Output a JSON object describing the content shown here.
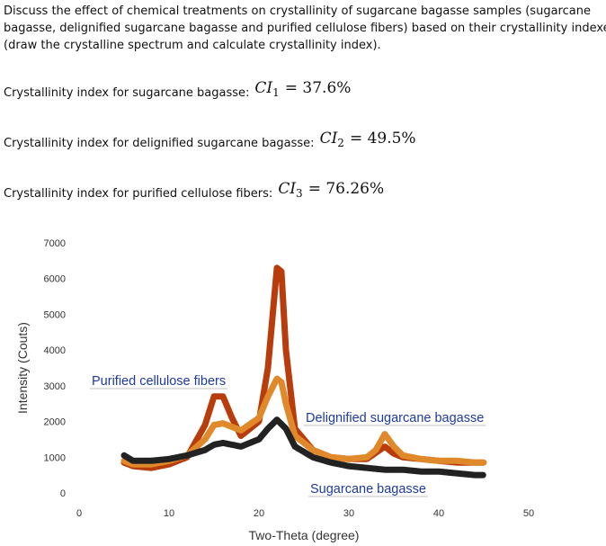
{
  "question": {
    "lines": [
      "Discuss the effect of chemical treatments on crystallinity of sugarcane bagasse samples (sugarcane",
      "bagasse, delignified sugarcane bagasse and purified cellulose fibers) based on their crystallinity indexes",
      "(draw the crystalline spectrum and calculate crystallinity index)."
    ]
  },
  "answers": [
    {
      "label": "Crystallinity index for sugarcane bagasse:",
      "symbol": "CI",
      "subscript": "1",
      "value": "= 37.6%"
    },
    {
      "label": "Crystallinity index for delignified sugarcane bagasse:",
      "symbol": "CI",
      "subscript": "2",
      "value": "= 49.5%"
    },
    {
      "label": "Crystallinity index for purified cellulose fibers:",
      "symbol": "CI",
      "subscript": "3",
      "value": "= 76.26%"
    }
  ],
  "chart_data": {
    "type": "line",
    "xlabel": "Two-Theta (degree)",
    "ylabel": "Intensity (Couts)",
    "xlim": [
      0,
      50
    ],
    "xticks": [
      0,
      10,
      20,
      30,
      40,
      50
    ],
    "ylim": [
      0,
      7000
    ],
    "yticks": [
      0,
      1000,
      2000,
      3000,
      4000,
      5000,
      6000,
      7000
    ],
    "annotations": [
      "Purified cellulose fibers",
      "Delignified sugarcane bagasse",
      "Sugarcane bagasse"
    ],
    "series": [
      {
        "color": "#b83c0c",
        "x": [
          5,
          6,
          8,
          10,
          12,
          14,
          15,
          16,
          17,
          18,
          20,
          21,
          22,
          22.5,
          23,
          24,
          26,
          28,
          30,
          32,
          34,
          35,
          36,
          38,
          40,
          42,
          44,
          45
        ],
        "values": [
          850,
          750,
          700,
          800,
          1000,
          1900,
          2700,
          2700,
          2100,
          1600,
          2000,
          3500,
          6300,
          6200,
          4000,
          1800,
          1200,
          1000,
          950,
          950,
          1300,
          1100,
          1000,
          950,
          900,
          850,
          850,
          850
        ]
      },
      {
        "color": "#e0892b",
        "x": [
          5,
          6,
          8,
          10,
          12,
          14,
          15,
          16,
          18,
          20,
          21,
          22,
          22.5,
          23,
          24,
          26,
          28,
          30,
          32,
          33,
          34,
          35,
          36,
          38,
          40,
          42,
          44,
          45
        ],
        "values": [
          900,
          800,
          800,
          900,
          1050,
          1500,
          1900,
          1950,
          1750,
          2100,
          2700,
          3200,
          3100,
          2500,
          1600,
          1200,
          1000,
          950,
          1000,
          1200,
          1650,
          1300,
          1050,
          950,
          900,
          900,
          850,
          850
        ]
      },
      {
        "color": "#222222",
        "x": [
          5,
          6,
          8,
          10,
          12,
          14,
          15,
          16,
          18,
          20,
          21,
          22,
          23,
          24,
          26,
          28,
          30,
          32,
          34,
          36,
          38,
          40,
          42,
          44,
          45
        ],
        "values": [
          1050,
          900,
          900,
          950,
          1050,
          1200,
          1350,
          1400,
          1300,
          1500,
          1800,
          2050,
          1800,
          1300,
          1000,
          850,
          750,
          700,
          650,
          650,
          600,
          600,
          550,
          500,
          500
        ]
      }
    ]
  }
}
